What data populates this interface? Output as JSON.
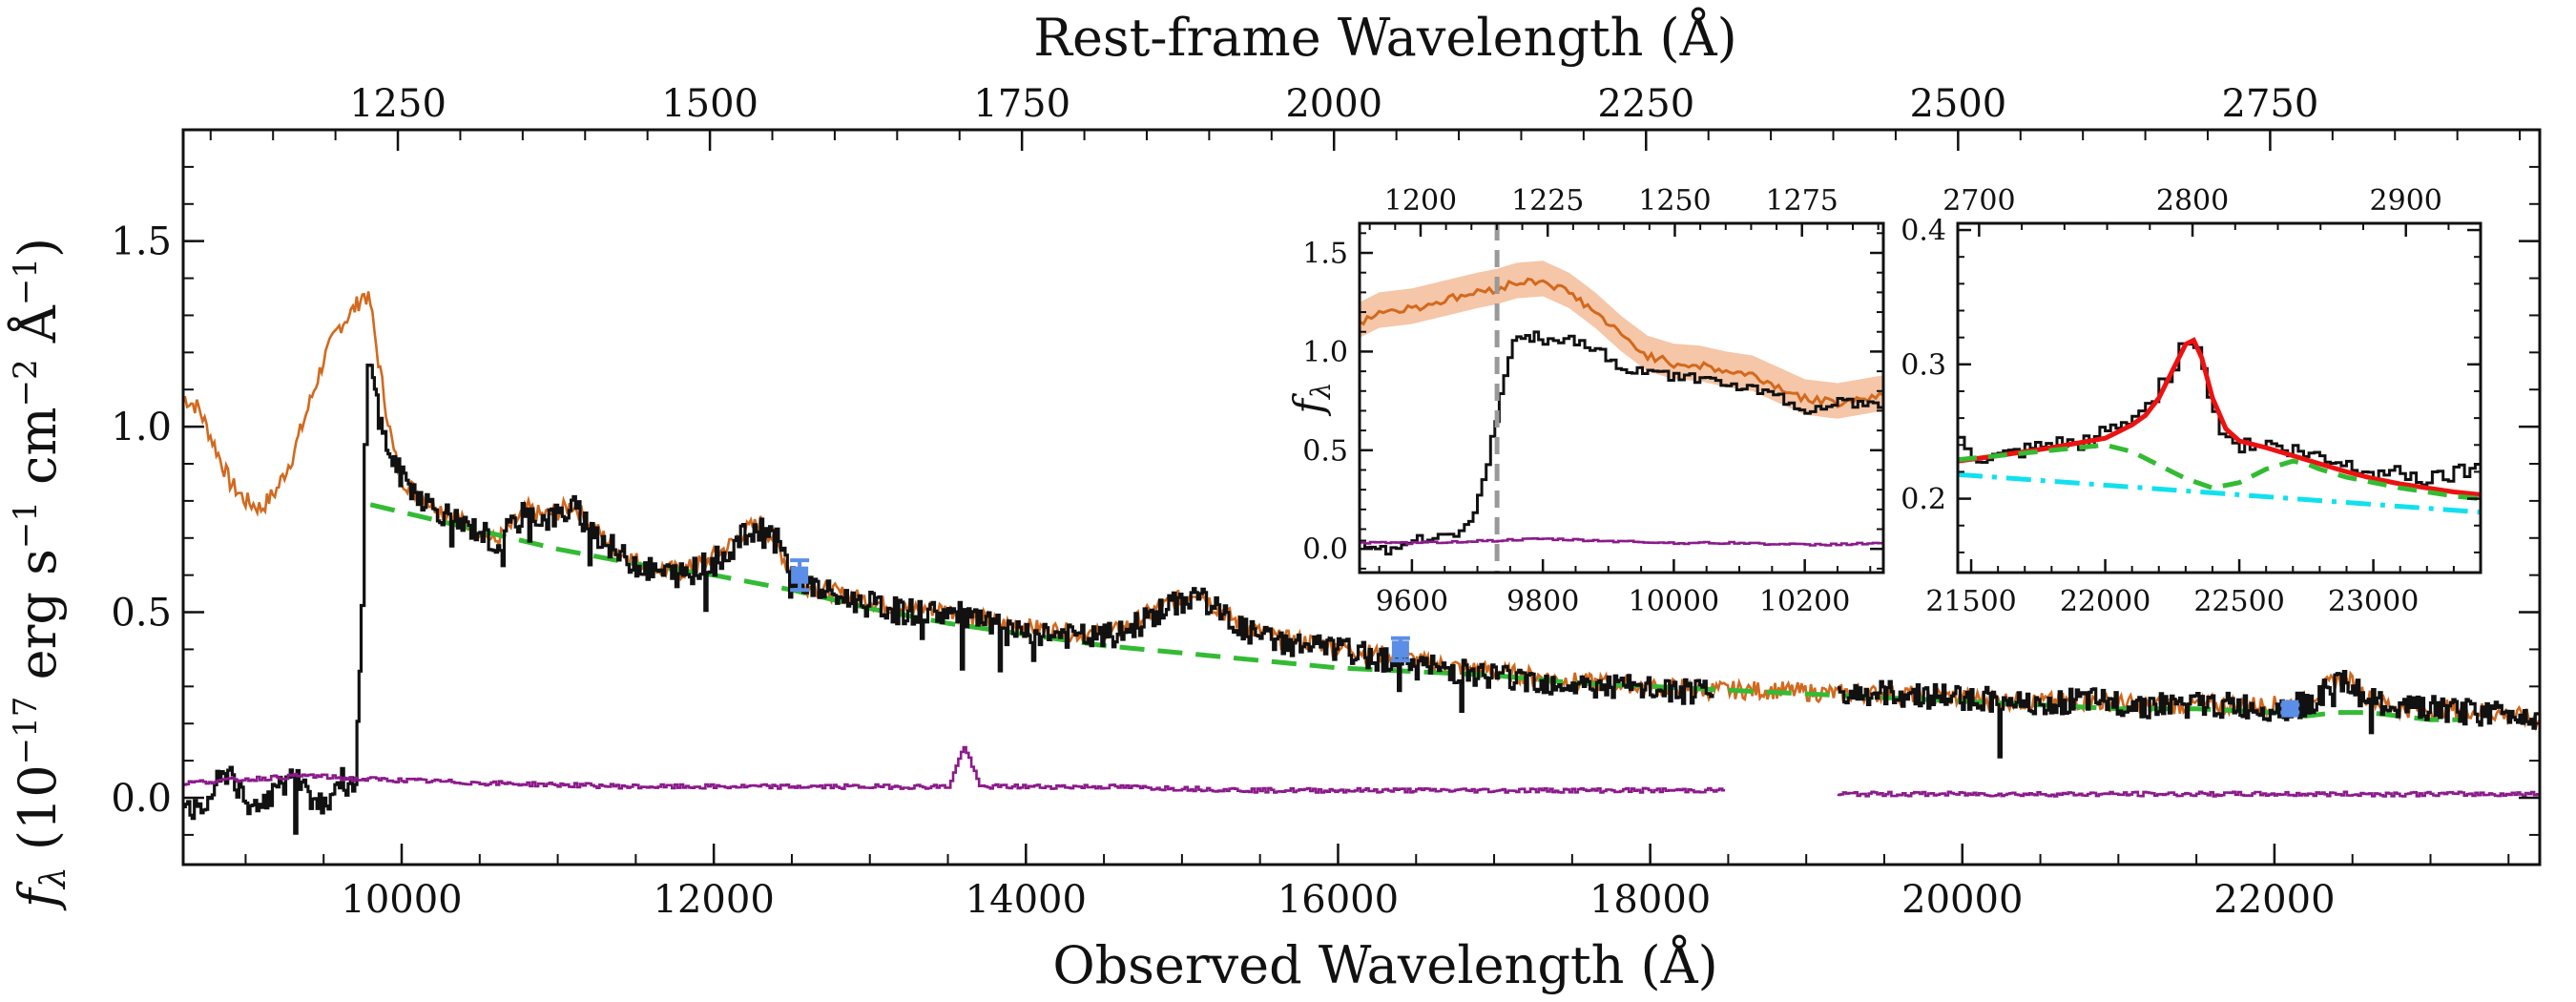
{
  "chart_data": {
    "type": "line",
    "main": {
      "xlabel": "Observed Wavelength (Å)",
      "top_xlabel": "Rest-frame Wavelength (Å)",
      "ylabel": "f_λ (10^-17 erg s^-1 cm^-2 Å^-1)",
      "ylabel_parts": {
        "f": "f",
        "sub": "λ",
        "open": " (10",
        "e1": "−17",
        "erg": " erg s",
        "e2": "−1",
        "cm": " cm",
        "e3": "−2",
        "ang": " Å",
        "e4": "−1",
        "close": ")"
      },
      "xlim": [
        8600,
        23700
      ],
      "ylim": [
        -0.18,
        1.8
      ],
      "top_xlim": [
        1078,
        2966
      ],
      "x_ticks": [
        "10000",
        "12000",
        "14000",
        "16000",
        "18000",
        "20000",
        "22000"
      ],
      "x_tick_values": [
        10000,
        12000,
        14000,
        16000,
        18000,
        20000,
        22000
      ],
      "y_ticks": [
        "0.0",
        "0.5",
        "1.0",
        "1.5"
      ],
      "y_tick_values": [
        0.0,
        0.5,
        1.0,
        1.5
      ],
      "top_ticks": [
        "1250",
        "1500",
        "1750",
        "2000",
        "2250",
        "2500",
        "2750"
      ],
      "top_tick_values": [
        1250,
        1500,
        1750,
        2000,
        2250,
        2500,
        2750
      ],
      "colors": {
        "spectrum": "#111111",
        "model": "#d2691e",
        "continuum": "#33bb33",
        "error": "#8b1a8b",
        "photometry": "#5b8ee6"
      },
      "series": [
        {
          "key": "model",
          "style": "solid-orange",
          "x": [
            8600,
            8700,
            8800,
            8900,
            9000,
            9100,
            9200,
            9300,
            9400,
            9500,
            9600,
            9700,
            9760,
            9800,
            9850,
            9900,
            9950,
            10000,
            10100,
            10200,
            10300,
            10400,
            10500,
            10600,
            10700,
            10800,
            10900,
            11000,
            11100,
            11200,
            11400,
            11600,
            11800,
            12000,
            12100,
            12200,
            12300,
            12400,
            12500,
            12600,
            12800,
            13000,
            13200,
            13400,
            13600,
            13800,
            14000,
            14200,
            14400,
            14600,
            14800,
            15000,
            15100,
            15200,
            15400,
            15600,
            15800,
            16000,
            16200,
            16400,
            16600,
            16800,
            17000,
            17200,
            17400,
            17600,
            17800,
            18000,
            18400,
            18800,
            19200,
            19600,
            20000,
            20400,
            20800,
            21200,
            21600,
            22000,
            22200,
            22300,
            22400,
            22500,
            22600,
            22800,
            23000,
            23200,
            23400,
            23700
          ],
          "y": [
            1.08,
            1.05,
            0.95,
            0.85,
            0.8,
            0.78,
            0.83,
            0.92,
            1.05,
            1.18,
            1.27,
            1.32,
            1.36,
            1.33,
            1.18,
            1.05,
            0.93,
            0.86,
            0.82,
            0.79,
            0.77,
            0.74,
            0.72,
            0.69,
            0.73,
            0.78,
            0.76,
            0.77,
            0.79,
            0.74,
            0.66,
            0.62,
            0.61,
            0.65,
            0.68,
            0.72,
            0.74,
            0.69,
            0.6,
            0.57,
            0.55,
            0.53,
            0.51,
            0.51,
            0.5,
            0.47,
            0.46,
            0.45,
            0.44,
            0.45,
            0.5,
            0.54,
            0.56,
            0.52,
            0.46,
            0.43,
            0.42,
            0.41,
            0.39,
            0.38,
            0.36,
            0.35,
            0.34,
            0.33,
            0.32,
            0.31,
            0.31,
            0.3,
            0.29,
            0.29,
            0.28,
            0.28,
            0.27,
            0.26,
            0.26,
            0.25,
            0.25,
            0.25,
            0.26,
            0.29,
            0.32,
            0.31,
            0.27,
            0.24,
            0.24,
            0.24,
            0.23,
            0.21
          ]
        },
        {
          "key": "continuum",
          "style": "dashed-green",
          "x": [
            9800,
            10000,
            10500,
            11000,
            11500,
            12000,
            12500,
            13000,
            13500,
            14000,
            14500,
            15000,
            15500,
            16000,
            16500,
            17000,
            17500,
            18000,
            18500,
            19000,
            19500,
            20000,
            20500,
            21000,
            21500,
            22000,
            22200,
            22400,
            22600,
            22800,
            23000,
            23200
          ],
          "y": [
            0.79,
            0.77,
            0.72,
            0.67,
            0.63,
            0.6,
            0.56,
            0.51,
            0.47,
            0.44,
            0.41,
            0.39,
            0.37,
            0.35,
            0.34,
            0.33,
            0.31,
            0.3,
            0.29,
            0.28,
            0.27,
            0.26,
            0.25,
            0.24,
            0.24,
            0.23,
            0.22,
            0.23,
            0.23,
            0.22,
            0.21,
            0.21
          ]
        },
        {
          "key": "spectrum",
          "style": "solid-black",
          "segments": [
            {
              "x": [
                8600,
                8700,
                8800,
                8900,
                9000,
                9100,
                9200,
                9300,
                9400,
                9500,
                9600,
                9700,
                9740,
                9760,
                9780,
                9800,
                9850,
                9900,
                9950,
                10000,
                10100,
                10200,
                10300,
                10400,
                10500,
                10600,
                10700,
                10800,
                10900,
                11000,
                11100,
                11200,
                11400,
                11600,
                11800,
                12000,
                12100,
                12200,
                12300,
                12400,
                12500,
                12600,
                12800,
                13000,
                13200,
                13400,
                13600,
                13800,
                14000,
                14200,
                14400,
                14600,
                14800,
                15000,
                15100,
                15200,
                15400,
                15600,
                15800,
                16000,
                16200,
                16400,
                16600,
                16800,
                17000,
                17200,
                17400,
                17600,
                17800,
                18000,
                18400
              ],
              "y": [
                0.0,
                -0.05,
                0.03,
                0.08,
                -0.04,
                0.0,
                0.02,
                0.06,
                0.03,
                -0.02,
                0.05,
                0.02,
                0.5,
                0.95,
                1.15,
                1.2,
                1.02,
                0.95,
                0.9,
                0.86,
                0.82,
                0.78,
                0.76,
                0.73,
                0.72,
                0.68,
                0.73,
                0.77,
                0.75,
                0.76,
                0.78,
                0.73,
                0.65,
                0.61,
                0.6,
                0.64,
                0.67,
                0.71,
                0.73,
                0.69,
                0.6,
                0.57,
                0.54,
                0.52,
                0.5,
                0.5,
                0.49,
                0.46,
                0.45,
                0.44,
                0.43,
                0.44,
                0.49,
                0.53,
                0.55,
                0.51,
                0.45,
                0.42,
                0.41,
                0.4,
                0.38,
                0.37,
                0.35,
                0.34,
                0.33,
                0.32,
                0.31,
                0.3,
                0.3,
                0.29,
                0.28
              ]
            },
            {
              "x": [
                19200,
                19600,
                20000,
                20400,
                20800,
                21200,
                21600,
                22000,
                22200,
                22300,
                22400,
                22500,
                22600,
                22800,
                23000,
                23200,
                23400,
                23700
              ],
              "y": [
                0.28,
                0.28,
                0.27,
                0.26,
                0.26,
                0.25,
                0.25,
                0.24,
                0.25,
                0.28,
                0.31,
                0.3,
                0.26,
                0.24,
                0.24,
                0.23,
                0.23,
                0.22
              ]
            }
          ]
        },
        {
          "key": "error",
          "style": "solid-purple",
          "segments": [
            {
              "x": [
                8600,
                9000,
                9400,
                9700,
                9800,
                10500,
                11500,
                12500,
                13500,
                13600,
                13700,
                14000,
                14500,
                15500,
                16500,
                17500,
                18480
              ],
              "y": [
                0.04,
                0.05,
                0.06,
                0.05,
                0.05,
                0.04,
                0.03,
                0.03,
                0.03,
                0.14,
                0.03,
                0.03,
                0.03,
                0.02,
                0.02,
                0.02,
                0.02
              ]
            },
            {
              "x": [
                19200,
                20000,
                21000,
                22000,
                23000,
                23700
              ],
              "y": [
                0.01,
                0.01,
                0.01,
                0.01,
                0.01,
                0.01
              ]
            }
          ]
        }
      ],
      "photometry": [
        {
          "x": 12550,
          "y": 0.6,
          "err": 0.04
        },
        {
          "x": 16400,
          "y": 0.4,
          "err": 0.03
        },
        {
          "x": 22100,
          "y": 0.24,
          "err": 0.01
        }
      ]
    },
    "inset_lya": {
      "ylabel": "f_λ",
      "ylabel_parts": {
        "f": "f",
        "sub": "λ"
      },
      "xlim": [
        9520,
        10320
      ],
      "ylim": [
        -0.12,
        1.65
      ],
      "top_xlim": [
        1188,
        1291
      ],
      "x_ticks": [
        "9600",
        "9800",
        "10000",
        "10200"
      ],
      "x_tick_values": [
        9600,
        9800,
        10000,
        10200
      ],
      "y_ticks": [
        "0.0",
        "0.5",
        "1.0",
        "1.5"
      ],
      "y_tick_values": [
        0.0,
        0.5,
        1.0,
        1.5
      ],
      "top_ticks": [
        "1200",
        "1225",
        "1250",
        "1275"
      ],
      "top_tick_values": [
        1200,
        1225,
        1250,
        1275
      ],
      "vline_x": 9730,
      "series": [
        {
          "key": "model",
          "x": [
            9520,
            9550,
            9600,
            9650,
            9700,
            9730,
            9760,
            9800,
            9840,
            9880,
            9920,
            9960,
            10000,
            10040,
            10080,
            10120,
            10160,
            10200,
            10250,
            10320
          ],
          "y": [
            1.15,
            1.2,
            1.22,
            1.26,
            1.3,
            1.32,
            1.35,
            1.36,
            1.3,
            1.2,
            1.08,
            0.98,
            0.94,
            0.93,
            0.9,
            0.88,
            0.82,
            0.76,
            0.74,
            0.78
          ]
        },
        {
          "key": "spectrum",
          "x": [
            9520,
            9560,
            9600,
            9640,
            9680,
            9700,
            9720,
            9740,
            9760,
            9780,
            9800,
            9840,
            9880,
            9920,
            9960,
            10000,
            10040,
            10080,
            10120,
            10160,
            10200,
            10250,
            10320
          ],
          "y": [
            0.02,
            0.0,
            0.04,
            0.05,
            0.1,
            0.25,
            0.55,
            0.9,
            1.1,
            1.08,
            1.05,
            1.07,
            1.0,
            0.92,
            0.9,
            0.87,
            0.88,
            0.85,
            0.8,
            0.76,
            0.7,
            0.75,
            0.73
          ]
        },
        {
          "key": "error",
          "x": [
            9520,
            9600,
            9700,
            9800,
            9900,
            10000,
            10100,
            10200,
            10320
          ],
          "y": [
            0.03,
            0.03,
            0.04,
            0.05,
            0.04,
            0.03,
            0.03,
            0.02,
            0.03
          ]
        }
      ]
    },
    "inset_mgii": {
      "xlim": [
        21450,
        23400
      ],
      "ylim": [
        0.145,
        0.405
      ],
      "top_xlim": [
        2690,
        2935
      ],
      "x_ticks": [
        "21500",
        "22000",
        "22500",
        "23000"
      ],
      "x_tick_values": [
        21500,
        22000,
        22500,
        23000
      ],
      "y_ticks": [
        "0.2",
        "0.3",
        "0.4"
      ],
      "y_tick_values": [
        0.2,
        0.3,
        0.4
      ],
      "top_ticks": [
        "2700",
        "2800",
        "2900"
      ],
      "top_tick_values": [
        2700,
        2800,
        2900
      ],
      "colors": {
        "total": "#ee1111",
        "feii": "#33bb33",
        "powerlaw": "#11e0ee"
      },
      "series": [
        {
          "key": "spectrum",
          "x": [
            21450,
            21500,
            21600,
            21700,
            21800,
            21900,
            22000,
            22100,
            22150,
            22200,
            22250,
            22300,
            22330,
            22360,
            22400,
            22450,
            22500,
            22600,
            22700,
            22800,
            22900,
            23000,
            23100,
            23200,
            23300,
            23400
          ],
          "y": [
            0.24,
            0.23,
            0.23,
            0.235,
            0.24,
            0.24,
            0.25,
            0.26,
            0.27,
            0.285,
            0.3,
            0.32,
            0.315,
            0.3,
            0.26,
            0.245,
            0.24,
            0.24,
            0.235,
            0.23,
            0.225,
            0.22,
            0.22,
            0.215,
            0.22,
            0.225
          ]
        },
        {
          "key": "total",
          "x": [
            21450,
            21600,
            21800,
            22000,
            22100,
            22150,
            22200,
            22250,
            22300,
            22330,
            22360,
            22400,
            22450,
            22500,
            22600,
            22700,
            22800,
            22900,
            23000,
            23100,
            23200,
            23300,
            23400
          ],
          "y": [
            0.228,
            0.232,
            0.238,
            0.245,
            0.255,
            0.262,
            0.275,
            0.295,
            0.315,
            0.318,
            0.305,
            0.275,
            0.252,
            0.243,
            0.238,
            0.232,
            0.226,
            0.22,
            0.215,
            0.211,
            0.208,
            0.205,
            0.203
          ]
        },
        {
          "key": "feii",
          "x": [
            21450,
            21600,
            21800,
            22000,
            22100,
            22200,
            22300,
            22400,
            22500,
            22600,
            22700,
            22750,
            22800,
            22900,
            23000,
            23100,
            23200,
            23300,
            23400
          ],
          "y": [
            0.229,
            0.232,
            0.236,
            0.24,
            0.235,
            0.225,
            0.215,
            0.208,
            0.212,
            0.222,
            0.228,
            0.226,
            0.222,
            0.216,
            0.212,
            0.208,
            0.205,
            0.202,
            0.2
          ]
        },
        {
          "key": "powerlaw",
          "x": [
            21450,
            23400
          ],
          "y": [
            0.218,
            0.19
          ]
        }
      ]
    }
  }
}
